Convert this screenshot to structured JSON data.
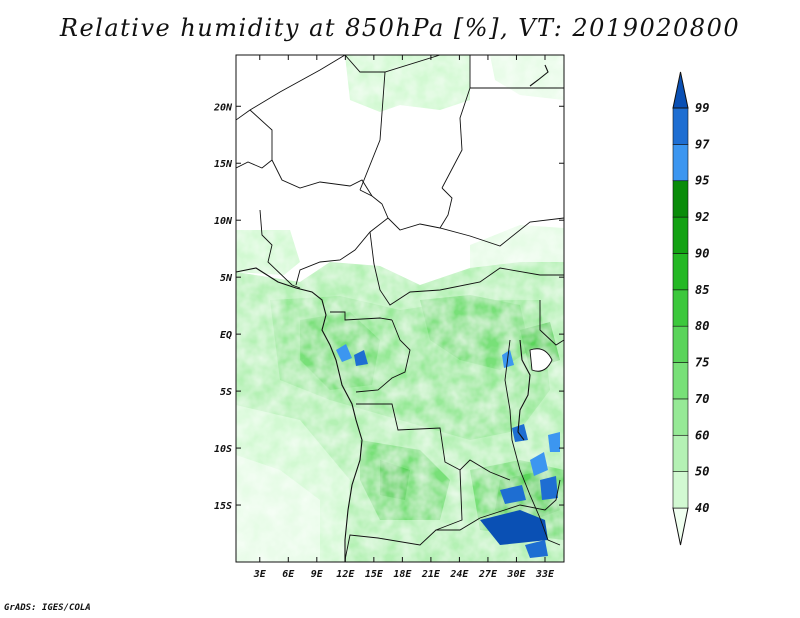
{
  "title": "Relative humidity at 850hPa [%], VT: 2019020800",
  "credit": "GrADS: IGES/COLA",
  "axes": {
    "lon_ticks": [
      {
        "label": "3E",
        "value": 3
      },
      {
        "label": "6E",
        "value": 6
      },
      {
        "label": "9E",
        "value": 9
      },
      {
        "label": "12E",
        "value": 12
      },
      {
        "label": "15E",
        "value": 15
      },
      {
        "label": "18E",
        "value": 18
      },
      {
        "label": "21E",
        "value": 21
      },
      {
        "label": "24E",
        "value": 24
      },
      {
        "label": "27E",
        "value": 27
      },
      {
        "label": "30E",
        "value": 30
      },
      {
        "label": "33E",
        "value": 33
      }
    ],
    "lat_ticks": [
      {
        "label": "20N",
        "value": 20
      },
      {
        "label": "15N",
        "value": 15
      },
      {
        "label": "10N",
        "value": 10
      },
      {
        "label": "5N",
        "value": 5
      },
      {
        "label": "EQ",
        "value": 0
      },
      {
        "label": "5S",
        "value": -5
      },
      {
        "label": "10S",
        "value": -10
      },
      {
        "label": "15S",
        "value": -15
      }
    ],
    "lon_range": [
      0.5,
      35
    ],
    "lat_range": [
      -20,
      24.5
    ]
  },
  "colorbar": {
    "levels": [
      "40",
      "50",
      "60",
      "70",
      "75",
      "80",
      "85",
      "90",
      "92",
      "95",
      "97",
      "99"
    ],
    "colors": [
      "#f0fff0",
      "#d2f9d2",
      "#b4f1b4",
      "#96e996",
      "#78e078",
      "#5ad45a",
      "#3cc83c",
      "#24b824",
      "#13a213",
      "#0a8c0a",
      "#3c96f0",
      "#1e6ed2",
      "#0a50b4"
    ]
  }
}
